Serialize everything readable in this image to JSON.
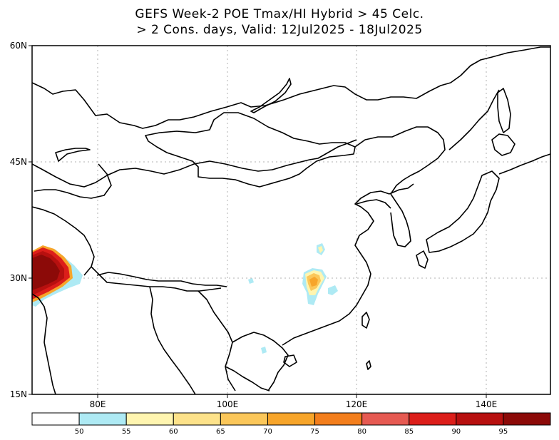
{
  "title": {
    "line1": "GEFS Week-2 POE Tmax/HI Hybrid > 45 Celc.",
    "line2": "> 2 Cons. days, Valid: 12Jul2025 - 18Jul2025"
  },
  "axes": {
    "lat_labels": [
      "60N",
      "45N",
      "30N",
      "15N"
    ],
    "lon_labels": [
      "80E",
      "100E",
      "120E",
      "140E"
    ],
    "lat_range": [
      15,
      60
    ],
    "lon_range": [
      70,
      150
    ],
    "grid": "dotted"
  },
  "colorbar": {
    "colors": [
      "#ffffff",
      "#aeeaf4",
      "#fff5b0",
      "#fde28a",
      "#fbc75a",
      "#f7a52a",
      "#f37e1c",
      "#e65a52",
      "#dc1e1a",
      "#b7100f",
      "#8c0a08"
    ],
    "labels": [
      "50",
      "55",
      "60",
      "65",
      "70",
      "75",
      "80",
      "85",
      "90",
      "95"
    ]
  }
}
